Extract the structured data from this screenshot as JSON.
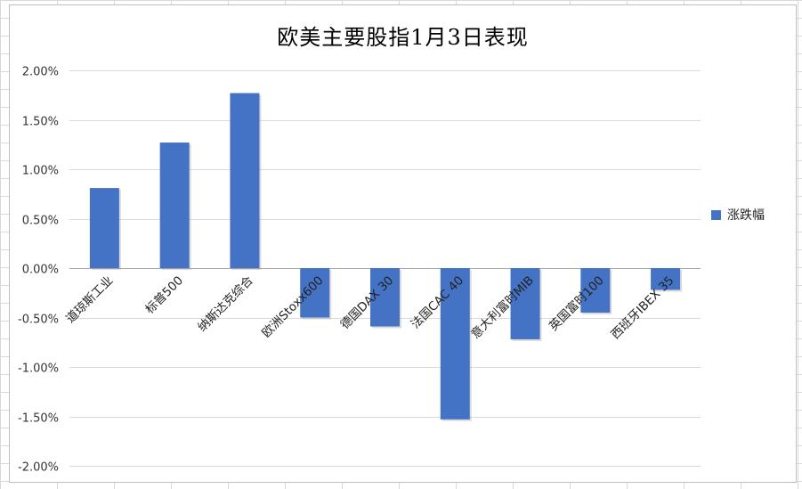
{
  "colors": {
    "bar": "#4472C4",
    "grid": "#D9D9D9",
    "axis": "#A6A6A6"
  },
  "chart_data": {
    "type": "bar",
    "title": "欧美主要股指1月3日表现",
    "xlabel": "",
    "ylabel": "",
    "categories": [
      "道琼斯工业",
      "标普500",
      "纳斯达克综合",
      "欧洲Stoxx600",
      "德国DAX 30",
      "法国CAC 40",
      "意大利富时MIB",
      "英国富时100",
      "西班牙IBEX 35"
    ],
    "series": [
      {
        "name": "涨跌幅",
        "values": [
          0.0081,
          0.0127,
          0.0177,
          -0.005,
          -0.0059,
          -0.0153,
          -0.0072,
          -0.0045,
          -0.0022
        ]
      }
    ],
    "ylim": [
      -0.02,
      0.02
    ],
    "yticks": [
      "2.00%",
      "1.50%",
      "1.00%",
      "0.50%",
      "0.00%",
      "-0.50%",
      "-1.00%",
      "-1.50%",
      "-2.00%"
    ],
    "grid": true,
    "legend_position": "right"
  }
}
